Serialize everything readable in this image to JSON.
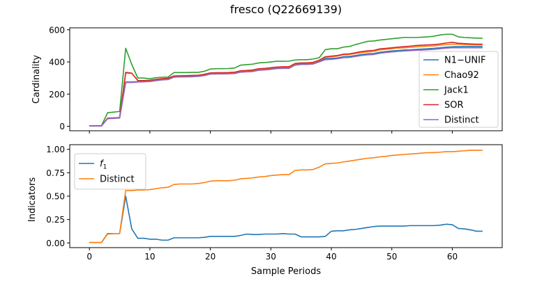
{
  "figure": {
    "title": "fresco (Q22669139)"
  },
  "chart_data": [
    {
      "type": "line",
      "ylabel": "Cardinality",
      "xlabel": "",
      "xlim": [
        -3.25,
        68.25
      ],
      "ylim": [
        -28,
        612
      ],
      "xticks": [
        0,
        10,
        20,
        30,
        40,
        50,
        60
      ],
      "yticks": [
        0,
        200,
        400,
        600
      ],
      "ytick_labels": [
        "0",
        "200",
        "400",
        "600"
      ],
      "legend_position": "lower-right",
      "grid": false,
      "series": [
        {
          "name": "N1−UNIF",
          "color": "#1f77b4",
          "values": [
            2,
            2,
            3,
            48,
            50,
            52,
            275,
            275,
            278,
            278,
            280,
            285,
            290,
            292,
            308,
            310,
            310,
            310,
            312,
            318,
            326,
            327,
            327,
            328,
            330,
            338,
            340,
            342,
            350,
            352,
            356,
            360,
            362,
            362,
            383,
            387,
            387,
            390,
            403,
            420,
            422,
            425,
            432,
            434,
            440,
            446,
            450,
            452,
            460,
            464,
            468,
            471,
            474,
            475,
            478,
            480,
            482,
            485,
            488,
            492,
            494,
            495,
            496,
            496,
            496,
            496
          ]
        },
        {
          "name": "Chao92",
          "color": "#ff7f0e",
          "values": [
            3,
            3,
            3,
            50,
            52,
            54,
            330,
            330,
            284,
            284,
            285,
            290,
            295,
            298,
            312,
            313,
            314,
            315,
            316,
            322,
            330,
            331,
            331,
            332,
            334,
            343,
            345,
            348,
            356,
            358,
            362,
            366,
            368,
            368,
            388,
            392,
            392,
            396,
            409,
            428,
            432,
            436,
            444,
            446,
            452,
            458,
            462,
            465,
            475,
            478,
            482,
            486,
            488,
            490,
            494,
            496,
            498,
            500,
            504,
            508,
            510,
            510,
            508,
            506,
            506,
            506
          ]
        },
        {
          "name": "Jack1",
          "color": "#2ca02c",
          "values": [
            3,
            3,
            4,
            84,
            88,
            92,
            485,
            385,
            300,
            300,
            295,
            302,
            305,
            306,
            334,
            334,
            334,
            335,
            335,
            342,
            356,
            358,
            358,
            359,
            362,
            380,
            383,
            386,
            394,
            396,
            400,
            404,
            404,
            405,
            412,
            414,
            414,
            418,
            426,
            476,
            482,
            482,
            492,
            496,
            508,
            518,
            528,
            530,
            536,
            540,
            544,
            548,
            552,
            552,
            552,
            554,
            556,
            560,
            568,
            572,
            572,
            556,
            552,
            550,
            548,
            548
          ]
        },
        {
          "name": "SOR",
          "color": "#d62728",
          "values": [
            3,
            3,
            3,
            50,
            52,
            54,
            335,
            330,
            285,
            284,
            286,
            291,
            296,
            299,
            313,
            314,
            315,
            316,
            317,
            323,
            332,
            333,
            333,
            334,
            336,
            345,
            347,
            350,
            358,
            360,
            364,
            368,
            370,
            370,
            390,
            394,
            394,
            398,
            411,
            432,
            436,
            440,
            448,
            450,
            457,
            464,
            469,
            472,
            481,
            484,
            488,
            492,
            495,
            498,
            502,
            504,
            506,
            508,
            512,
            518,
            522,
            516,
            514,
            512,
            510,
            510
          ]
        },
        {
          "name": "Distinct",
          "color": "#9467bd",
          "values": [
            2,
            2,
            2,
            47,
            49,
            51,
            272,
            272,
            275,
            276,
            278,
            283,
            288,
            290,
            305,
            307,
            307,
            308,
            310,
            315,
            324,
            325,
            325,
            326,
            328,
            336,
            338,
            340,
            348,
            350,
            354,
            358,
            360,
            360,
            380,
            384,
            384,
            387,
            400,
            414,
            416,
            420,
            426,
            428,
            434,
            440,
            444,
            446,
            454,
            458,
            462,
            465,
            468,
            470,
            472,
            474,
            476,
            478,
            482,
            486,
            488,
            488,
            488,
            488,
            488,
            488
          ]
        }
      ]
    },
    {
      "type": "line",
      "ylabel": "Indicators",
      "xlabel": "Sample Periods",
      "xlim": [
        -3.25,
        68.25
      ],
      "ylim": [
        -0.05,
        1.05
      ],
      "xticks": [
        0,
        10,
        20,
        30,
        40,
        50,
        60
      ],
      "xtick_labels": [
        "0",
        "10",
        "20",
        "30",
        "40",
        "50",
        "60"
      ],
      "yticks": [
        0,
        0.25,
        0.5,
        0.75,
        1.0
      ],
      "ytick_labels": [
        "0.00",
        "0.25",
        "0.50",
        "0.75",
        "1.00"
      ],
      "legend_position": "upper-left",
      "grid": false,
      "series": [
        {
          "name": "f1",
          "color": "#1f77b4",
          "values": [
            0.004,
            0.004,
            0.004,
            0.1,
            0.1,
            0.1,
            0.5,
            0.15,
            0.05,
            0.05,
            0.04,
            0.04,
            0.03,
            0.03,
            0.055,
            0.055,
            0.055,
            0.055,
            0.055,
            0.06,
            0.07,
            0.07,
            0.07,
            0.07,
            0.07,
            0.08,
            0.095,
            0.09,
            0.09,
            0.095,
            0.095,
            0.095,
            0.1,
            0.095,
            0.095,
            0.065,
            0.065,
            0.065,
            0.065,
            0.07,
            0.125,
            0.13,
            0.13,
            0.14,
            0.145,
            0.155,
            0.165,
            0.175,
            0.18,
            0.18,
            0.18,
            0.18,
            0.18,
            0.185,
            0.185,
            0.185,
            0.185,
            0.185,
            0.19,
            0.2,
            0.195,
            0.155,
            0.15,
            0.14,
            0.125,
            0.125
          ]
        },
        {
          "name": "Distinct",
          "color": "#ff7f0e",
          "values": [
            0.004,
            0.004,
            0.004,
            0.095,
            0.1,
            0.1,
            0.56,
            0.56,
            0.565,
            0.565,
            0.57,
            0.58,
            0.59,
            0.595,
            0.625,
            0.63,
            0.63,
            0.63,
            0.635,
            0.645,
            0.66,
            0.665,
            0.665,
            0.665,
            0.67,
            0.685,
            0.69,
            0.695,
            0.705,
            0.71,
            0.72,
            0.725,
            0.73,
            0.73,
            0.775,
            0.78,
            0.78,
            0.785,
            0.81,
            0.845,
            0.85,
            0.855,
            0.865,
            0.875,
            0.885,
            0.895,
            0.905,
            0.91,
            0.92,
            0.925,
            0.935,
            0.94,
            0.945,
            0.95,
            0.955,
            0.96,
            0.965,
            0.965,
            0.97,
            0.975,
            0.975,
            0.98,
            0.985,
            0.99,
            0.99,
            0.99
          ]
        }
      ]
    }
  ]
}
